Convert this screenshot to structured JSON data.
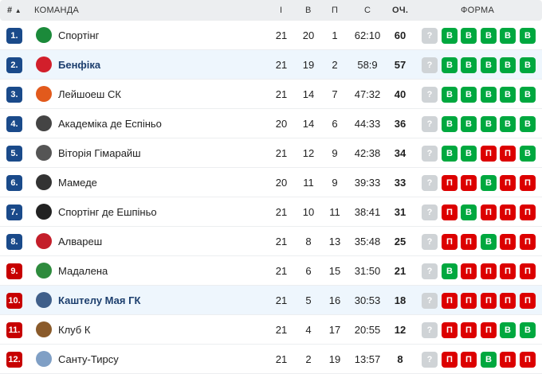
{
  "header": {
    "rank": "#",
    "sort_icon": "▲",
    "team": "КОМАНДА",
    "played": "І",
    "won": "В",
    "lost": "П",
    "score": "С",
    "points": "ОЧ.",
    "form": "ФОРМА"
  },
  "colors": {
    "rank_top": "#1a4a8a",
    "rank_bottom": "#c70000",
    "win": "#00a83f",
    "loss": "#dc0000",
    "unknown": "#cfd3d6",
    "highlight": "#eef6fd"
  },
  "form_unknown": "?",
  "rows": [
    {
      "rank": "1.",
      "team": "Спортінг",
      "played": "21",
      "won": "20",
      "lost": "1",
      "score": "62:10",
      "points": "60",
      "zone": "top",
      "hl": false,
      "logo": "#1b8a3a",
      "form": [
        "В",
        "В",
        "В",
        "В",
        "В"
      ]
    },
    {
      "rank": "2.",
      "team": "Бенфіка",
      "played": "21",
      "won": "19",
      "lost": "2",
      "score": "58:9",
      "points": "57",
      "zone": "top",
      "hl": true,
      "logo": "#d21f2b",
      "form": [
        "В",
        "В",
        "В",
        "В",
        "В"
      ]
    },
    {
      "rank": "3.",
      "team": "Лейшоеш СК",
      "played": "21",
      "won": "14",
      "lost": "7",
      "score": "47:32",
      "points": "40",
      "zone": "top",
      "hl": false,
      "logo": "#e25a1c",
      "form": [
        "В",
        "В",
        "В",
        "В",
        "В"
      ]
    },
    {
      "rank": "4.",
      "team": "Академіка де Еспіньо",
      "played": "20",
      "won": "14",
      "lost": "6",
      "score": "44:33",
      "points": "36",
      "zone": "top",
      "hl": false,
      "logo": "#444444",
      "form": [
        "В",
        "В",
        "В",
        "В",
        "В"
      ]
    },
    {
      "rank": "5.",
      "team": "Віторія Гімарайш",
      "played": "21",
      "won": "12",
      "lost": "9",
      "score": "42:38",
      "points": "34",
      "zone": "top",
      "hl": false,
      "logo": "#555555",
      "form": [
        "В",
        "В",
        "П",
        "П",
        "В"
      ]
    },
    {
      "rank": "6.",
      "team": "Мамеде",
      "played": "20",
      "won": "11",
      "lost": "9",
      "score": "39:33",
      "points": "33",
      "zone": "top",
      "hl": false,
      "logo": "#333333",
      "form": [
        "П",
        "П",
        "В",
        "П",
        "П"
      ]
    },
    {
      "rank": "7.",
      "team": "Спортінг де Ешпіньо",
      "played": "21",
      "won": "10",
      "lost": "11",
      "score": "38:41",
      "points": "31",
      "zone": "top",
      "hl": false,
      "logo": "#222222",
      "form": [
        "П",
        "В",
        "П",
        "П",
        "П"
      ]
    },
    {
      "rank": "8.",
      "team": "Алвареш",
      "played": "21",
      "won": "8",
      "lost": "13",
      "score": "35:48",
      "points": "25",
      "zone": "top",
      "hl": false,
      "logo": "#c41e2a",
      "form": [
        "П",
        "П",
        "В",
        "П",
        "П"
      ]
    },
    {
      "rank": "9.",
      "team": "Мадалена",
      "played": "21",
      "won": "6",
      "lost": "15",
      "score": "31:50",
      "points": "21",
      "zone": "bottom",
      "hl": false,
      "logo": "#2e8b3d",
      "form": [
        "В",
        "П",
        "П",
        "П",
        "П"
      ]
    },
    {
      "rank": "10.",
      "team": "Каштелу Мая ГК",
      "played": "21",
      "won": "5",
      "lost": "16",
      "score": "30:53",
      "points": "18",
      "zone": "bottom",
      "hl": true,
      "logo": "#3f5f8a",
      "form": [
        "П",
        "П",
        "П",
        "П",
        "П"
      ]
    },
    {
      "rank": "11.",
      "team": "Клуб К",
      "played": "21",
      "won": "4",
      "lost": "17",
      "score": "20:55",
      "points": "12",
      "zone": "bottom",
      "hl": false,
      "logo": "#8a5a2a",
      "form": [
        "П",
        "П",
        "П",
        "В",
        "В"
      ]
    },
    {
      "rank": "12.",
      "team": "Санту-Тирсу",
      "played": "21",
      "won": "2",
      "lost": "19",
      "score": "13:57",
      "points": "8",
      "zone": "bottom",
      "hl": false,
      "logo": "#7f9fc5",
      "form": [
        "П",
        "П",
        "В",
        "П",
        "П"
      ]
    }
  ]
}
